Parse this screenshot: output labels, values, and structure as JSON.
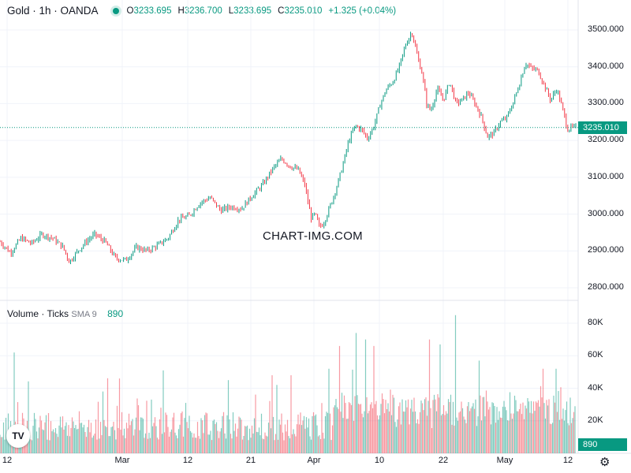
{
  "header": {
    "symbol": "Gold · 1h · OANDA",
    "open_label": "O",
    "open": "3233.695",
    "high_label": "H",
    "high": "3236.700",
    "low_label": "L",
    "low": "3233.695",
    "close_label": "C",
    "close": "3235.010",
    "change": "+1.325 (+0.04%)"
  },
  "volume_header": {
    "title": "Volume · Ticks",
    "sma": "SMA 9",
    "value": "890"
  },
  "watermark": "CHART-IMG.COM",
  "last_price_tag": "3235.010",
  "last_volume_tag": "890",
  "colors": {
    "up": "#089981",
    "down": "#f23645",
    "grid": "#f0f3fa",
    "text": "#131722"
  },
  "icons": {
    "logo": "tradingview-logo-icon",
    "settings": "gear-icon"
  },
  "chart_data": [
    {
      "type": "line",
      "name": "price",
      "y_ticks": [
        "3500.000",
        "3400.000",
        "3300.000",
        "3200.000",
        "3100.000",
        "3000.000",
        "2900.000",
        "2800.000"
      ],
      "ylim": [
        2780,
        3510
      ],
      "x_ticks": [
        "12",
        "Mar",
        "12",
        "21",
        "Apr",
        "10",
        "22",
        "May",
        "12"
      ],
      "points": [
        [
          0,
          2925
        ],
        [
          5,
          2895
        ],
        [
          10,
          2935
        ],
        [
          15,
          2920
        ],
        [
          20,
          2945
        ],
        [
          25,
          2935
        ],
        [
          30,
          2910
        ],
        [
          33,
          2870
        ],
        [
          37,
          2900
        ],
        [
          41,
          2925
        ],
        [
          45,
          2945
        ],
        [
          50,
          2925
        ],
        [
          55,
          2880
        ],
        [
          60,
          2875
        ],
        [
          65,
          2910
        ],
        [
          70,
          2900
        ],
        [
          75,
          2915
        ],
        [
          80,
          2935
        ],
        [
          85,
          2985
        ],
        [
          90,
          2995
        ],
        [
          95,
          3030
        ],
        [
          100,
          3045
        ],
        [
          105,
          3010
        ],
        [
          110,
          3020
        ],
        [
          115,
          3015
        ],
        [
          120,
          3050
        ],
        [
          125,
          3080
        ],
        [
          130,
          3125
        ],
        [
          134,
          3150
        ],
        [
          138,
          3130
        ],
        [
          142,
          3120
        ],
        [
          145,
          3080
        ],
        [
          148,
          2990
        ],
        [
          150,
          3000
        ],
        [
          152,
          2965
        ],
        [
          154,
          2975
        ],
        [
          157,
          3020
        ],
        [
          160,
          3070
        ],
        [
          163,
          3130
        ],
        [
          166,
          3200
        ],
        [
          169,
          3240
        ],
        [
          172,
          3230
        ],
        [
          175,
          3205
        ],
        [
          178,
          3240
        ],
        [
          181,
          3300
        ],
        [
          184,
          3340
        ],
        [
          187,
          3360
        ],
        [
          190,
          3400
        ],
        [
          193,
          3460
        ],
        [
          196,
          3495
        ],
        [
          199,
          3420
        ],
        [
          201,
          3380
        ],
        [
          203,
          3300
        ],
        [
          205,
          3280
        ],
        [
          208,
          3340
        ],
        [
          211,
          3310
        ],
        [
          214,
          3360
        ],
        [
          217,
          3300
        ],
        [
          220,
          3310
        ],
        [
          223,
          3330
        ],
        [
          226,
          3300
        ],
        [
          229,
          3265
        ],
        [
          232,
          3210
        ],
        [
          235,
          3220
        ],
        [
          238,
          3250
        ],
        [
          241,
          3260
        ],
        [
          244,
          3300
        ],
        [
          247,
          3350
        ],
        [
          250,
          3410
        ],
        [
          253,
          3395
        ],
        [
          256,
          3390
        ],
        [
          259,
          3350
        ],
        [
          262,
          3310
        ],
        [
          265,
          3340
        ],
        [
          268,
          3280
        ],
        [
          270,
          3230
        ],
        [
          272,
          3235
        ]
      ],
      "x_range": [
        0,
        274
      ]
    },
    {
      "type": "bar",
      "name": "volume",
      "y_ticks": [
        "80K",
        "60K",
        "40K",
        "20K"
      ],
      "ylim": [
        0,
        88000
      ],
      "sma_period": 9,
      "spikes": [
        [
          18,
          62000
        ],
        [
          55,
          56000
        ],
        [
          131,
          38000
        ],
        [
          152,
          46000
        ],
        [
          181,
          52000
        ],
        [
          207,
          51000
        ],
        [
          259,
          44000
        ],
        [
          268,
          47000
        ],
        [
          290,
          45000
        ],
        [
          322,
          50000
        ],
        [
          345,
          48000
        ],
        [
          369,
          48000
        ],
        [
          417,
          52000
        ],
        [
          431,
          66000
        ],
        [
          452,
          74000
        ],
        [
          464,
          70000
        ],
        [
          474,
          66000
        ],
        [
          496,
          62000
        ],
        [
          520,
          58000
        ],
        [
          545,
          70000
        ],
        [
          558,
          67000
        ],
        [
          578,
          85000
        ],
        [
          592,
          62000
        ],
        [
          608,
          57000
        ],
        [
          622,
          64000
        ],
        [
          637,
          69000
        ],
        [
          661,
          55000
        ],
        [
          689,
          52000
        ],
        [
          705,
          52000
        ],
        [
          727,
          78000
        ]
      ]
    }
  ]
}
